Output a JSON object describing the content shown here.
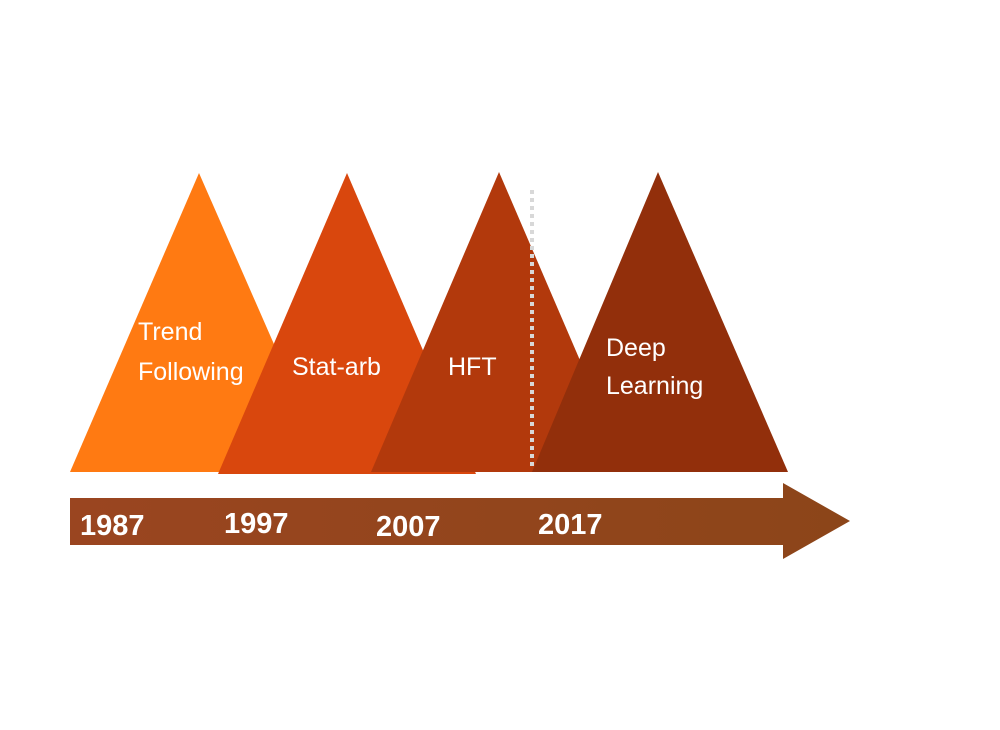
{
  "eras": [
    {
      "label_lines": [
        "Trend",
        "Following"
      ],
      "year": "1987"
    },
    {
      "label_lines": [
        "Stat-arb"
      ],
      "year": "1997"
    },
    {
      "label_lines": [
        "HFT"
      ],
      "year": "2007"
    },
    {
      "label_lines": [
        "Deep",
        "Learning"
      ],
      "year": "2017"
    }
  ]
}
